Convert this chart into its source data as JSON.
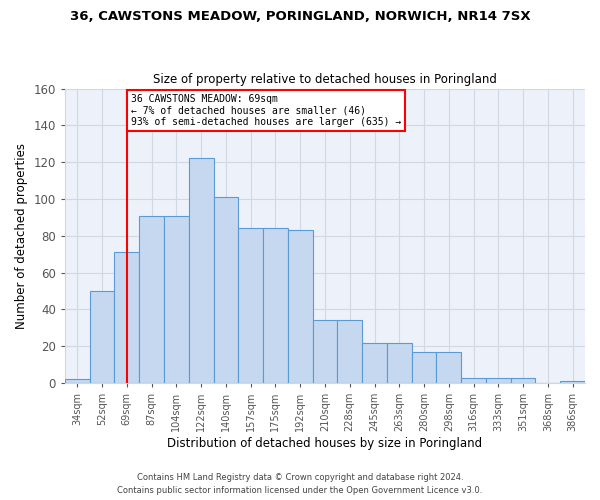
{
  "title": "36, CAWSTONS MEADOW, PORINGLAND, NORWICH, NR14 7SX",
  "subtitle": "Size of property relative to detached houses in Poringland",
  "xlabel": "Distribution of detached houses by size in Poringland",
  "ylabel": "Number of detached properties",
  "categories": [
    "34sqm",
    "52sqm",
    "69sqm",
    "87sqm",
    "104sqm",
    "122sqm",
    "140sqm",
    "157sqm",
    "175sqm",
    "192sqm",
    "210sqm",
    "228sqm",
    "245sqm",
    "263sqm",
    "280sqm",
    "298sqm",
    "316sqm",
    "333sqm",
    "351sqm",
    "368sqm",
    "386sqm"
  ],
  "values": [
    2,
    50,
    71,
    91,
    91,
    122,
    101,
    84,
    84,
    83,
    34,
    34,
    22,
    22,
    17,
    17,
    3,
    3,
    3,
    0,
    1
  ],
  "bar_color": "#c5d8f0",
  "bar_edge_color": "#5b9bd5",
  "redline_x": 2,
  "annotation_line1": "36 CAWSTONS MEADOW: 69sqm",
  "annotation_line2": "← 7% of detached houses are smaller (46)",
  "annotation_line3": "93% of semi-detached houses are larger (635) →",
  "annotation_box_color": "white",
  "annotation_box_edge_color": "red",
  "ylim": [
    0,
    160
  ],
  "yticks": [
    0,
    20,
    40,
    60,
    80,
    100,
    120,
    140,
    160
  ],
  "grid_color": "#d0d8e4",
  "bg_color": "#edf2fa",
  "footer1": "Contains HM Land Registry data © Crown copyright and database right 2024.",
  "footer2": "Contains public sector information licensed under the Open Government Licence v3.0."
}
